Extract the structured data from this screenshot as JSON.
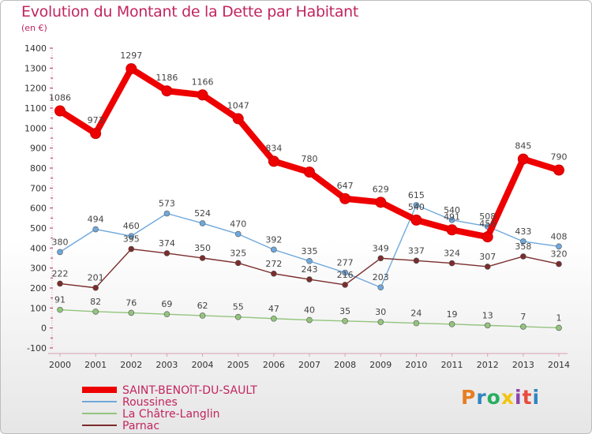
{
  "title": "Evolution du Montant de la Dette par Habitant",
  "unit_label": "(en €)",
  "logo_text": "Proxiti",
  "chart_data": {
    "type": "line",
    "title": "Evolution du Montant de la Dette par Habitant",
    "ylabel": "(en €)",
    "ylim": [
      -100,
      1400
    ],
    "yticks": [
      -100,
      0,
      100,
      200,
      300,
      400,
      500,
      600,
      700,
      800,
      900,
      1000,
      1100,
      1200,
      1300,
      1400
    ],
    "x": [
      "2000",
      "2001",
      "2002",
      "2003",
      "2004",
      "2005",
      "2006",
      "2007",
      "2008",
      "2009",
      "2010",
      "2011",
      "2012",
      "2013",
      "2014"
    ],
    "grid": false,
    "legend": "bottom-left",
    "series": [
      {
        "name": "SAINT-BENOîT-DU-SAULT",
        "color": "#ee0000",
        "values": [
          1086,
          973,
          1297,
          1186,
          1166,
          1047,
          834,
          780,
          647,
          629,
          540,
          491,
          456,
          845,
          790
        ],
        "labels": [
          "1086",
          "973",
          "1297",
          "1186",
          "1166",
          "1047",
          "834",
          "780",
          "647",
          "629",
          "540",
          "491",
          "456",
          "845",
          "790"
        ]
      },
      {
        "name": "Roussines",
        "color": "#6fa8dc",
        "values": [
          380,
          494,
          460,
          573,
          524,
          470,
          392,
          335,
          277,
          203,
          615,
          540,
          508,
          433,
          408
        ],
        "labels": [
          "380",
          "494",
          "460",
          "573",
          "524",
          "470",
          "392",
          "335",
          "277",
          "203",
          "615",
          "540",
          "508",
          "433",
          "408"
        ]
      },
      {
        "name": "La Châtre-Langlin",
        "color": "#93c47d",
        "values": [
          91,
          82,
          76,
          69,
          62,
          55,
          47,
          40,
          35,
          30,
          24,
          19,
          13,
          7,
          1
        ],
        "labels": [
          "91",
          "82",
          "76",
          "69",
          "62",
          "55",
          "47",
          "40",
          "35",
          "30",
          "24",
          "19",
          "13",
          "7",
          "1"
        ]
      },
      {
        "name": "Parnac",
        "color": "#7b2c2c",
        "values": [
          222,
          201,
          395,
          374,
          350,
          325,
          272,
          243,
          216,
          349,
          337,
          324,
          307,
          358,
          320
        ],
        "labels": [
          "222",
          "201",
          "395",
          "374",
          "350",
          "325",
          "272",
          "243",
          "216",
          "349",
          "337",
          "324",
          "307",
          "358",
          "320"
        ]
      }
    ]
  }
}
